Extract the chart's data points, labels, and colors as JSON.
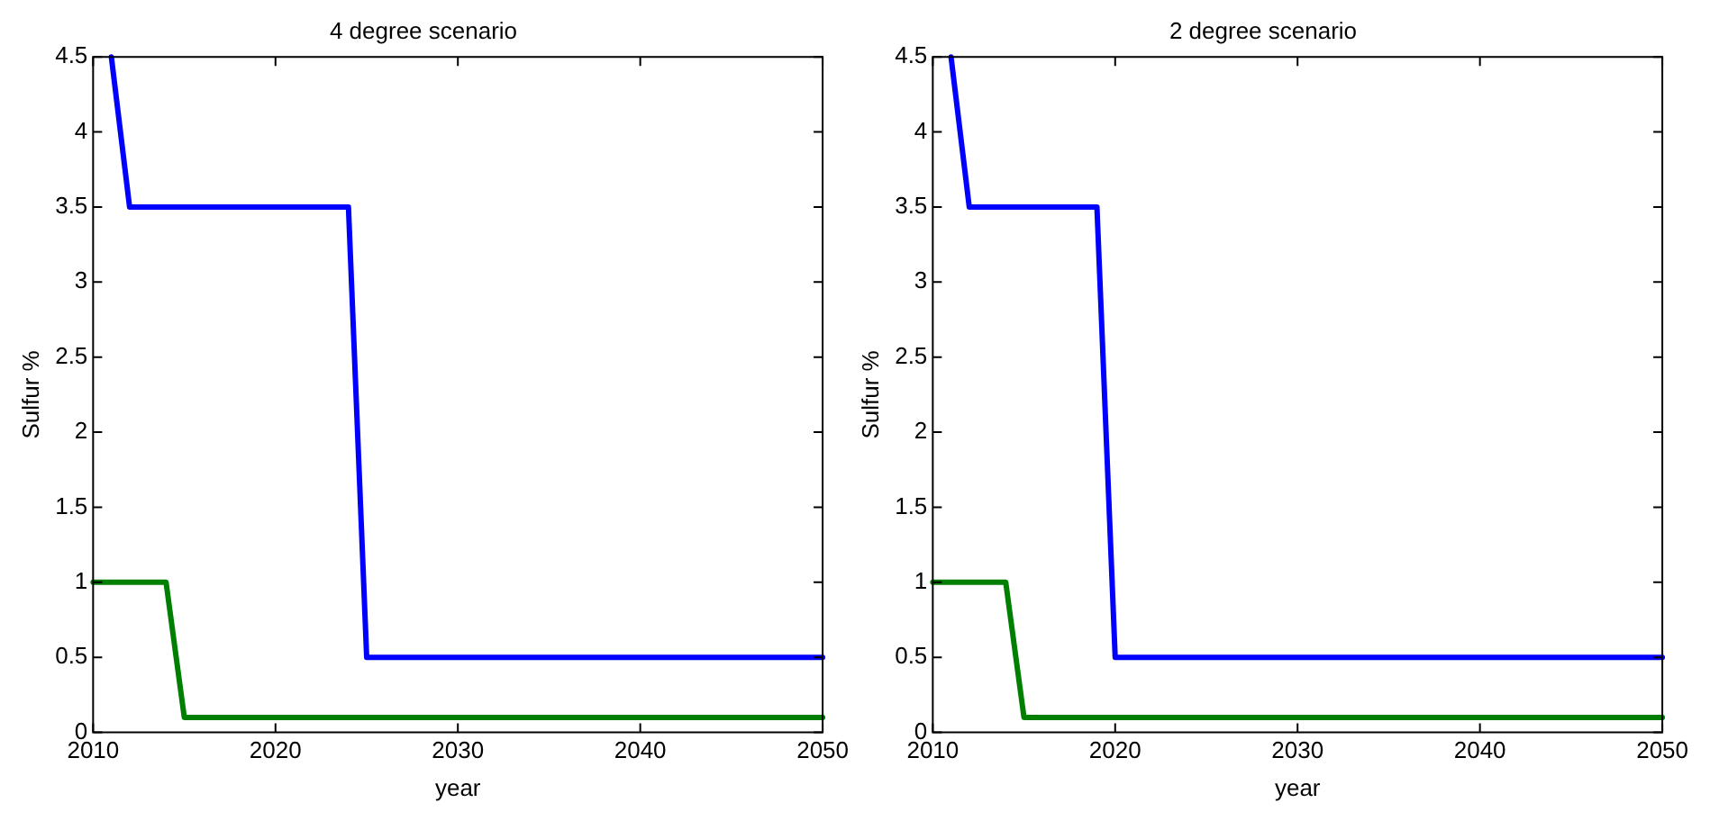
{
  "chart_data": [
    {
      "type": "line",
      "title": "4 degree scenario",
      "xlabel": "year",
      "ylabel": "Sulfur %",
      "xlim": [
        2010,
        2050
      ],
      "ylim": [
        0,
        4.5
      ],
      "xticks": [
        2010,
        2020,
        2030,
        2040,
        2050
      ],
      "yticks": [
        0,
        0.5,
        1,
        1.5,
        2,
        2.5,
        3,
        3.5,
        4,
        4.5
      ],
      "series": [
        {
          "color": "#0000ff",
          "x": [
            2011,
            2012,
            2024,
            2025,
            2050
          ],
          "values": [
            4.5,
            3.5,
            3.5,
            0.5,
            0.5
          ]
        },
        {
          "color": "#007f00",
          "x": [
            2010,
            2014,
            2015,
            2050
          ],
          "values": [
            1,
            1,
            0.1,
            0.1
          ]
        }
      ]
    },
    {
      "type": "line",
      "title": "2 degree scenario",
      "xlabel": "year",
      "ylabel": "Sulfur %",
      "xlim": [
        2010,
        2050
      ],
      "ylim": [
        0,
        4.5
      ],
      "xticks": [
        2010,
        2020,
        2030,
        2040,
        2050
      ],
      "yticks": [
        0,
        0.5,
        1,
        1.5,
        2,
        2.5,
        3,
        3.5,
        4,
        4.5
      ],
      "series": [
        {
          "color": "#0000ff",
          "x": [
            2011,
            2012,
            2019,
            2020,
            2050
          ],
          "values": [
            4.5,
            3.5,
            3.5,
            0.5,
            0.5
          ]
        },
        {
          "color": "#007f00",
          "x": [
            2010,
            2014,
            2015,
            2050
          ],
          "values": [
            1,
            1,
            0.1,
            0.1
          ]
        }
      ]
    }
  ]
}
